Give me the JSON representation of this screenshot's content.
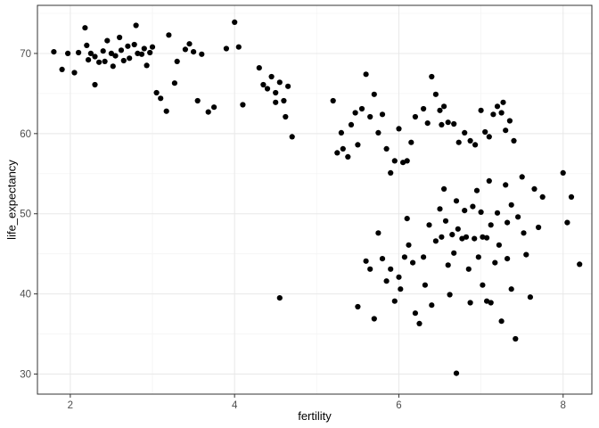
{
  "chart_data": {
    "type": "scatter",
    "title": "",
    "xlabel": "fertility",
    "ylabel": "life_expectancy",
    "xlim": [
      1.6,
      8.35
    ],
    "ylim": [
      27.5,
      76
    ],
    "x_ticks": [
      2,
      4,
      6,
      8
    ],
    "y_ticks": [
      30,
      40,
      50,
      60,
      70
    ],
    "x_minor": [
      3,
      5,
      7
    ],
    "y_minor": [
      35,
      45,
      55,
      65,
      75
    ],
    "grid": "on",
    "legend": "none",
    "colors": {
      "point": "#000000",
      "grid_major": "#e8e8e8",
      "grid_minor": "#f4f4f4",
      "panel_border": "#333333",
      "tick_label": "#4d4d4d",
      "axis_title": "#000000",
      "background": "#ffffff"
    },
    "points": [
      [
        1.8,
        70.2
      ],
      [
        1.9,
        68
      ],
      [
        1.97,
        70
      ],
      [
        2.05,
        67.6
      ],
      [
        2.1,
        70.1
      ],
      [
        2.18,
        73.2
      ],
      [
        2.2,
        71
      ],
      [
        2.22,
        69.2
      ],
      [
        2.25,
        70
      ],
      [
        2.3,
        69.6
      ],
      [
        2.3,
        66.1
      ],
      [
        2.35,
        68.9
      ],
      [
        2.4,
        70.3
      ],
      [
        2.42,
        69
      ],
      [
        2.45,
        71.6
      ],
      [
        2.5,
        70
      ],
      [
        2.52,
        68.4
      ],
      [
        2.55,
        69.7
      ],
      [
        2.6,
        72
      ],
      [
        2.62,
        70.4
      ],
      [
        2.65,
        69.1
      ],
      [
        2.7,
        70.9
      ],
      [
        2.72,
        69.4
      ],
      [
        2.78,
        71.1
      ],
      [
        2.8,
        73.5
      ],
      [
        2.82,
        70
      ],
      [
        2.87,
        69.9
      ],
      [
        2.9,
        70.6
      ],
      [
        2.93,
        68.5
      ],
      [
        2.97,
        70.1
      ],
      [
        3.0,
        70.8
      ],
      [
        3.05,
        65.1
      ],
      [
        3.1,
        64.4
      ],
      [
        3.17,
        62.8
      ],
      [
        3.2,
        72.3
      ],
      [
        3.27,
        66.3
      ],
      [
        3.3,
        69
      ],
      [
        3.4,
        70.5
      ],
      [
        3.45,
        71.2
      ],
      [
        3.5,
        70.2
      ],
      [
        3.55,
        64.1
      ],
      [
        3.6,
        69.9
      ],
      [
        3.68,
        62.7
      ],
      [
        3.75,
        63.3
      ],
      [
        3.9,
        70.6
      ],
      [
        4.0,
        73.9
      ],
      [
        4.05,
        70.8
      ],
      [
        4.1,
        63.6
      ],
      [
        4.3,
        68.2
      ],
      [
        4.35,
        66.1
      ],
      [
        4.4,
        65.6
      ],
      [
        4.45,
        67.1
      ],
      [
        4.5,
        65.1
      ],
      [
        4.5,
        63.9
      ],
      [
        4.55,
        66.4
      ],
      [
        4.6,
        64.1
      ],
      [
        4.62,
        62.1
      ],
      [
        4.65,
        65.9
      ],
      [
        4.7,
        59.6
      ],
      [
        4.55,
        39.5
      ],
      [
        5.2,
        64.1
      ],
      [
        5.25,
        57.6
      ],
      [
        5.3,
        60.1
      ],
      [
        5.32,
        58.1
      ],
      [
        5.38,
        57.1
      ],
      [
        5.42,
        61.1
      ],
      [
        5.47,
        62.6
      ],
      [
        5.5,
        58.6
      ],
      [
        5.55,
        63.1
      ],
      [
        5.6,
        67.4
      ],
      [
        5.65,
        62.1
      ],
      [
        5.7,
        64.9
      ],
      [
        5.75,
        60.1
      ],
      [
        5.8,
        62.4
      ],
      [
        5.85,
        58.1
      ],
      [
        5.9,
        55.1
      ],
      [
        5.95,
        56.6
      ],
      [
        6.0,
        60.6
      ],
      [
        6.05,
        56.4
      ],
      [
        6.1,
        56.6
      ],
      [
        6.15,
        58.9
      ],
      [
        6.2,
        62.1
      ],
      [
        6.3,
        63.1
      ],
      [
        6.35,
        61.3
      ],
      [
        6.4,
        67.1
      ],
      [
        6.45,
        64.9
      ],
      [
        6.5,
        62.9
      ],
      [
        6.52,
        61.1
      ],
      [
        6.55,
        63.4
      ],
      [
        6.6,
        61.4
      ],
      [
        6.67,
        61.2
      ],
      [
        6.73,
        58.9
      ],
      [
        6.8,
        60.1
      ],
      [
        6.87,
        59.1
      ],
      [
        6.93,
        58.6
      ],
      [
        7.0,
        62.9
      ],
      [
        7.05,
        60.2
      ],
      [
        7.1,
        59.6
      ],
      [
        7.15,
        62.4
      ],
      [
        7.2,
        63.4
      ],
      [
        7.27,
        63.9
      ],
      [
        7.3,
        60.4
      ],
      [
        7.35,
        61.6
      ],
      [
        7.25,
        62.6
      ],
      [
        5.5,
        38.4
      ],
      [
        5.6,
        44.1
      ],
      [
        5.65,
        43.1
      ],
      [
        5.7,
        36.9
      ],
      [
        5.75,
        47.6
      ],
      [
        5.8,
        44.4
      ],
      [
        5.85,
        41.6
      ],
      [
        5.9,
        43.1
      ],
      [
        5.95,
        39.1
      ],
      [
        6.0,
        42.1
      ],
      [
        6.02,
        40.6
      ],
      [
        6.07,
        44.6
      ],
      [
        6.1,
        49.4
      ],
      [
        6.12,
        46.1
      ],
      [
        6.17,
        43.9
      ],
      [
        6.2,
        37.6
      ],
      [
        6.25,
        36.3
      ],
      [
        6.3,
        44.6
      ],
      [
        6.32,
        41.1
      ],
      [
        6.37,
        48.6
      ],
      [
        6.4,
        38.6
      ],
      [
        6.45,
        46.6
      ],
      [
        6.5,
        50.6
      ],
      [
        6.52,
        47.1
      ],
      [
        6.55,
        53.1
      ],
      [
        6.57,
        49.1
      ],
      [
        6.6,
        43.6
      ],
      [
        6.62,
        39.9
      ],
      [
        6.65,
        47.4
      ],
      [
        6.67,
        45.1
      ],
      [
        6.7,
        51.6
      ],
      [
        6.72,
        48.1
      ],
      [
        6.7,
        30.1
      ],
      [
        6.77,
        46.9
      ],
      [
        6.8,
        50.4
      ],
      [
        6.82,
        47.1
      ],
      [
        6.85,
        43.1
      ],
      [
        6.87,
        38.9
      ],
      [
        6.9,
        50.9
      ],
      [
        6.92,
        46.9
      ],
      [
        6.95,
        52.9
      ],
      [
        6.97,
        44.6
      ],
      [
        7.0,
        50.2
      ],
      [
        7.02,
        47.1
      ],
      [
        7.02,
        41.1
      ],
      [
        7.07,
        39.1
      ],
      [
        7.07,
        47.0
      ],
      [
        7.1,
        54.1
      ],
      [
        7.12,
        48.6
      ],
      [
        7.12,
        38.9
      ],
      [
        7.17,
        43.9
      ],
      [
        7.2,
        50.1
      ],
      [
        7.22,
        46.1
      ],
      [
        7.25,
        36.6
      ],
      [
        7.3,
        53.6
      ],
      [
        7.32,
        48.9
      ],
      [
        7.32,
        44.4
      ],
      [
        7.37,
        51.1
      ],
      [
        7.37,
        40.6
      ],
      [
        7.4,
        59.1
      ],
      [
        7.42,
        34.4
      ],
      [
        7.45,
        49.6
      ],
      [
        7.5,
        54.6
      ],
      [
        7.52,
        47.6
      ],
      [
        7.55,
        44.9
      ],
      [
        7.6,
        39.6
      ],
      [
        7.65,
        53.1
      ],
      [
        7.7,
        48.3
      ],
      [
        7.75,
        52.1
      ],
      [
        8.0,
        55.1
      ],
      [
        8.05,
        48.9
      ],
      [
        8.1,
        52.1
      ],
      [
        8.2,
        43.7
      ]
    ]
  }
}
